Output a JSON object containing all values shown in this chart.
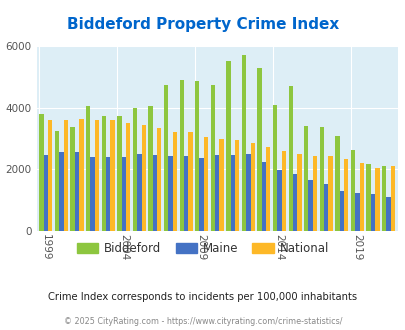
{
  "title": "Biddeford Property Crime Index",
  "subtitle": "Crime Index corresponds to incidents per 100,000 inhabitants",
  "copyright": "© 2025 CityRating.com - https://www.cityrating.com/crime-statistics/",
  "years": [
    1999,
    2000,
    2001,
    2002,
    2003,
    2004,
    2005,
    2006,
    2007,
    2008,
    2009,
    2010,
    2011,
    2012,
    2013,
    2014,
    2015,
    2016,
    2017,
    2018,
    2019,
    2020,
    2021
  ],
  "biddeford": [
    3800,
    3250,
    3370,
    4060,
    3730,
    3720,
    4000,
    4050,
    4750,
    4900,
    4870,
    4750,
    5530,
    5700,
    5280,
    4100,
    4720,
    3400,
    3390,
    3090,
    2640,
    2180,
    2100
  ],
  "maine": [
    2480,
    2570,
    2560,
    2390,
    2390,
    2390,
    2490,
    2470,
    2430,
    2440,
    2360,
    2480,
    2480,
    2500,
    2250,
    1990,
    1840,
    1650,
    1520,
    1310,
    1230,
    1210,
    1100
  ],
  "national": [
    3620,
    3620,
    3640,
    3610,
    3600,
    3510,
    3440,
    3340,
    3230,
    3200,
    3060,
    2990,
    2940,
    2870,
    2740,
    2600,
    2490,
    2450,
    2420,
    2350,
    2210,
    2040,
    2100
  ],
  "bar_colors": {
    "biddeford": "#8dc63f",
    "maine": "#4472c4",
    "national": "#fdb827"
  },
  "background_color": "#ddeef6",
  "ylim": [
    0,
    6000
  ],
  "yticks": [
    0,
    2000,
    4000,
    6000
  ],
  "title_color": "#0066cc",
  "subtitle_color": "#222222",
  "copyright_color": "#888888",
  "legend_labels": [
    "Biddeford",
    "Maine",
    "National"
  ],
  "xlabel_ticks": [
    1999,
    2004,
    2009,
    2014,
    2019
  ]
}
